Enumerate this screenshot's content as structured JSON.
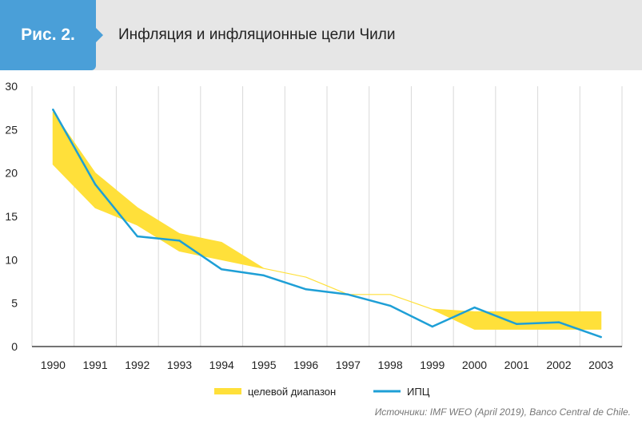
{
  "header": {
    "badge": "Рис. 2.",
    "title": "Инфляция и инфляционные цели Чили"
  },
  "colors": {
    "badge": "#4a9fd8",
    "band": "#ffe03a",
    "line": "#1e9fd6",
    "grid": "#d9d9d9"
  },
  "chart_data": {
    "type": "line",
    "categories": [
      "1990",
      "1991",
      "1992",
      "1993",
      "1994",
      "1995",
      "1996",
      "1997",
      "1998",
      "1999",
      "2000",
      "2001",
      "2002",
      "2003"
    ],
    "ylim": [
      0,
      30
    ],
    "yticks": [
      0,
      5,
      10,
      15,
      20,
      25,
      30
    ],
    "grid": "vertical",
    "legend_position": "bottom-center",
    "band": {
      "name": "целевой диапазон",
      "lower": [
        21,
        16,
        14,
        11,
        10,
        9,
        8,
        6,
        6,
        4.3,
        2,
        2,
        2,
        2
      ],
      "upper": [
        27,
        20,
        16,
        13,
        12,
        9,
        8,
        6,
        6,
        4.3,
        4,
        4,
        4,
        4
      ]
    },
    "series": [
      {
        "name": "ИПЦ",
        "values": [
          27.3,
          18.7,
          12.7,
          12.2,
          8.9,
          8.2,
          6.6,
          6.0,
          4.7,
          2.3,
          4.5,
          2.6,
          2.8,
          1.1
        ]
      }
    ],
    "source": "Источники: IMF WEO (April 2019), Banco Central de Chile."
  }
}
